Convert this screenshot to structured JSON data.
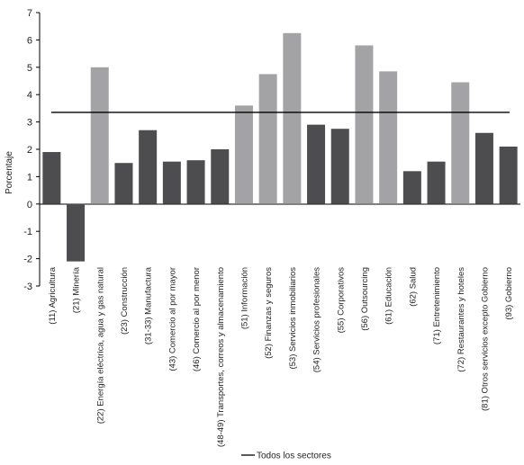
{
  "chart_data": {
    "type": "bar",
    "ylabel": "Porcentaje",
    "ylim": [
      -3,
      7
    ],
    "yticks": [
      7,
      6,
      5,
      4,
      3,
      2,
      1,
      0,
      -1,
      -2,
      -3
    ],
    "grid": false,
    "legend_position": "bottom-center",
    "colors": {
      "dark": "#4d4d4f",
      "light": "#a3a3a5",
      "line": "#000000"
    },
    "categories": [
      {
        "label": "(11) Agricultura",
        "value": 1.9,
        "shade": "dark"
      },
      {
        "label": "(21) Minería",
        "value": -2.1,
        "shade": "dark"
      },
      {
        "label": "(22) Energía eléctrica, agua y gas natural",
        "value": 5.0,
        "shade": "light"
      },
      {
        "label": "(23) Construcción",
        "value": 1.5,
        "shade": "dark"
      },
      {
        "label": "(31-33) Manufactura",
        "value": 2.7,
        "shade": "dark"
      },
      {
        "label": "(43) Comercio al por mayor",
        "value": 1.55,
        "shade": "dark"
      },
      {
        "label": "(46) Comercio al por menor",
        "value": 1.6,
        "shade": "dark"
      },
      {
        "label": "(48-49) Transportes, correos y almacenamiento",
        "value": 2.0,
        "shade": "dark"
      },
      {
        "label": "(51) Información",
        "value": 3.6,
        "shade": "light"
      },
      {
        "label": "(52) Finanzas y seguros",
        "value": 4.75,
        "shade": "light"
      },
      {
        "label": "(53) Servicios inmobiliarios",
        "value": 6.25,
        "shade": "light"
      },
      {
        "label": "(54) Servicios profesionales",
        "value": 2.9,
        "shade": "dark"
      },
      {
        "label": "(55) Corporativos",
        "value": 2.75,
        "shade": "dark"
      },
      {
        "label": "(56) Outsourcing",
        "value": 5.8,
        "shade": "light"
      },
      {
        "label": "(61) Educación",
        "value": 4.85,
        "shade": "light"
      },
      {
        "label": "(62) Salud",
        "value": 1.2,
        "shade": "dark"
      },
      {
        "label": "(71) Entretenimiento",
        "value": 1.55,
        "shade": "dark"
      },
      {
        "label": "(72) Restaurantes y hoteles",
        "value": 4.45,
        "shade": "light"
      },
      {
        "label": "(81) Otros servicios excepto Gobierno",
        "value": 2.6,
        "shade": "dark"
      },
      {
        "label": "(93) Gobierno",
        "value": 2.1,
        "shade": "dark"
      }
    ],
    "reference_line": {
      "name": "Todos los sectores",
      "value": 3.35
    }
  }
}
